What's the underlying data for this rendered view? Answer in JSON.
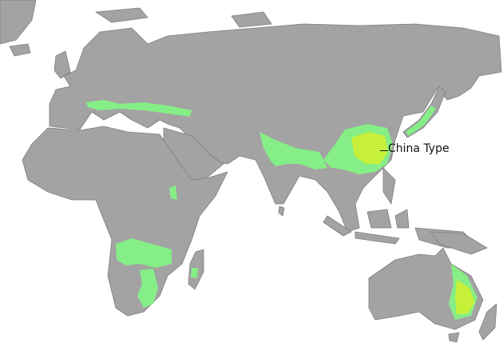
{
  "map": {
    "region_label": "China Type",
    "colors": {
      "land": "#a3a3a3",
      "border": "#7d7d7d",
      "water": "#ffffff",
      "climate_light_green": "#86ee86",
      "climate_yellow_green": "#c6f03a"
    }
  }
}
